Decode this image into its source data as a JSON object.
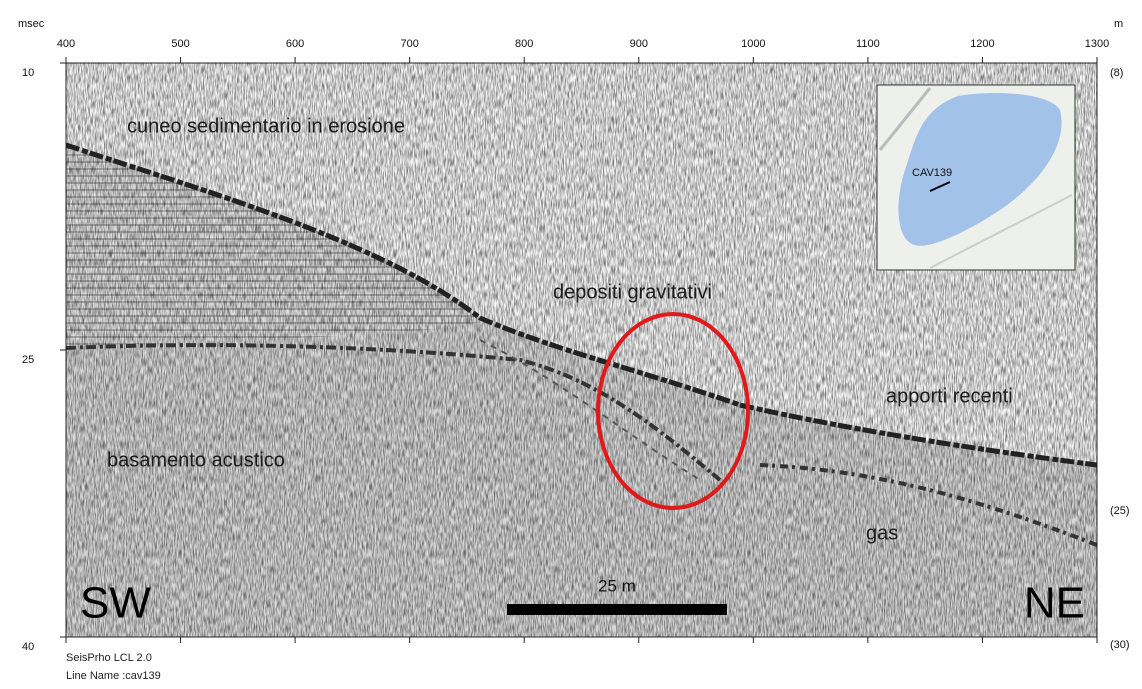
{
  "top_axis": {
    "unit": "m",
    "ticks": [
      400,
      500,
      600,
      700,
      800,
      900,
      1000,
      1100,
      1200,
      1300
    ]
  },
  "left_axis": {
    "unit": "msec",
    "ticks": [
      10,
      25,
      40
    ]
  },
  "right_axis": {
    "labels": [
      "(8)",
      "(25)",
      "(30)"
    ]
  },
  "annotations": {
    "wedge": "cuneo sedimentario in erosione",
    "gravity": "depositi gravitativi",
    "recent": "apporti recenti",
    "basement": "basamento acustico",
    "gas": "gas"
  },
  "scale_bar": "25 m",
  "directions": {
    "left": "SW",
    "right": "NE"
  },
  "inset": {
    "label": "CAV139"
  },
  "footer": {
    "software": "SeisPrho LCL 2.0",
    "line_name": "Line Name :cav139"
  }
}
